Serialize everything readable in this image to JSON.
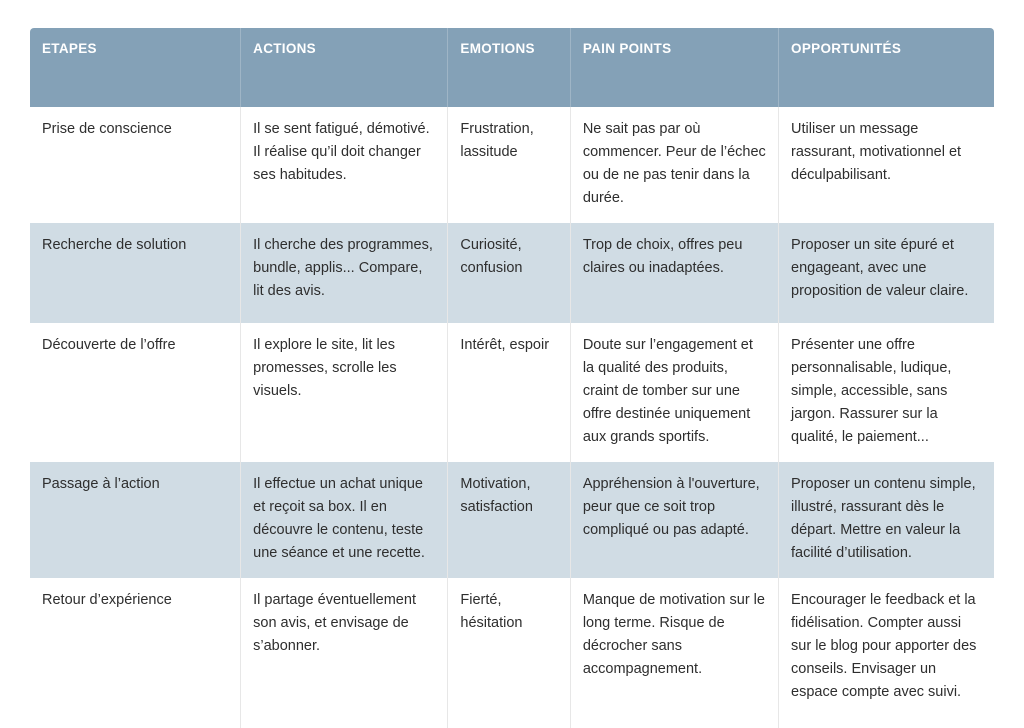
{
  "colors": {
    "header_bg": "#84a1b7",
    "header_fg": "#ffffff",
    "alt_row_bg": "#d0dce4",
    "body_fg": "#2e2e2e"
  },
  "table": {
    "columns": [
      {
        "key": "etapes",
        "label": "ETAPES"
      },
      {
        "key": "actions",
        "label": "ACTIONS"
      },
      {
        "key": "emotions",
        "label": "EMOTIONS"
      },
      {
        "key": "pain_points",
        "label": "PAIN POINTS"
      },
      {
        "key": "opportunites",
        "label": "OPPORTUNITÉS"
      }
    ],
    "rows": [
      {
        "etapes": "Prise de conscience",
        "actions": "Il se sent fatigué, démotivé. Il réalise qu’il doit changer ses habitudes.",
        "emotions": "Frustration, lassitude",
        "pain_points": "Ne sait pas par où commencer. Peur de l’échec ou de ne pas tenir dans la durée.",
        "opportunites": "Utiliser un message rassurant, motivationnel et déculpabilisant."
      },
      {
        "etapes": "Recherche de solution",
        "actions": "Il cherche des programmes, bundle, applis... Compare, lit des avis.",
        "emotions": "Curiosité, confusion",
        "pain_points": "Trop de choix, offres peu claires ou inadaptées.",
        "opportunites": "Proposer un site épuré et engageant, avec une proposition de valeur claire."
      },
      {
        "etapes": "Découverte de l’offre",
        "actions": "Il explore le site, lit les promesses, scrolle les visuels.",
        "emotions": "Intérêt, espoir",
        "pain_points": "Doute sur l’engagement et la qualité des produits, craint de tomber sur une offre destinée uniquement aux grands sportifs.",
        "opportunites": "Présenter une offre personnalisable, ludique, simple, accessible, sans jargon. Rassurer sur la qualité, le paiement..."
      },
      {
        "etapes": "Passage à l’action",
        "actions": "Il effectue un achat unique et reçoit sa box. Il en découvre le contenu, teste une séance et une recette.",
        "emotions": "Motivation, satisfaction",
        "pain_points": "Appréhension à l'ouverture, peur que ce soit trop compliqué ou pas adapté.",
        "opportunites": "Proposer un contenu simple, illustré, rassurant dès le départ. Mettre en valeur la facilité d’utilisation."
      },
      {
        "etapes": "Retour d’expérience",
        "actions": "Il partage éventuellement son avis, et envisage de s’abonner.",
        "emotions": "Fierté, hésitation",
        "pain_points": "Manque de motivation sur le long terme. Risque de décrocher sans accompagnement.",
        "opportunites": "Encourager le feedback et la fidélisation. Compter aussi sur le blog pour apporter des conseils. Envisager un espace compte avec suivi."
      }
    ]
  }
}
